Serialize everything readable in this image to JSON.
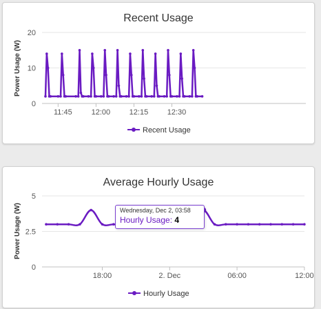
{
  "colors": {
    "series": "#6a1bc2",
    "axis": "#c0c0c0",
    "grid": "#e6e6e6"
  },
  "chart_data": [
    {
      "type": "line",
      "title": "Recent Usage",
      "ylabel": "Power Usage (W)",
      "xlabel": "",
      "ylim": [
        0,
        20
      ],
      "yticks": [
        "0",
        "10",
        "20"
      ],
      "xticks": [
        "11:45",
        "12:00",
        "12:15",
        "12:30"
      ],
      "legend": "bottom-center",
      "grid": true,
      "series": [
        {
          "name": "Recent Usage",
          "x": [
            "11:40",
            "11:40.5",
            "11:41",
            "11:41.5",
            "11:42",
            "11:45",
            "11:46",
            "11:46.5",
            "11:47",
            "11:47.5",
            "11:48",
            "11:52",
            "11:53",
            "11:53.5",
            "11:54",
            "11:54.5",
            "11:55",
            "11:57",
            "11:58",
            "11:58.5",
            "11:59",
            "11:59.5",
            "12:00",
            "12:02",
            "12:03",
            "12:03.5",
            "12:04",
            "12:04.5",
            "12:05",
            "12:07",
            "12:08",
            "12:08.5",
            "12:09",
            "12:09.5",
            "12:10",
            "12:12",
            "12:13",
            "12:13.5",
            "12:14",
            "12:14.5",
            "12:15",
            "12:17",
            "12:18",
            "12:18.5",
            "12:19",
            "12:19.5",
            "12:20",
            "12:22",
            "12:23",
            "12:23.5",
            "12:24",
            "12:24.5",
            "12:25",
            "12:27",
            "12:28",
            "12:28.5",
            "12:29",
            "12:29.5",
            "12:30",
            "12:32",
            "12:33",
            "12:33.5",
            "12:34",
            "12:34.5",
            "12:35",
            "12:37",
            "12:38",
            "12:38.5",
            "12:39",
            "12:39.5",
            "12:40",
            "12:42"
          ],
          "values": [
            2,
            14,
            10,
            2,
            2,
            2,
            2,
            14,
            8,
            2,
            2,
            2,
            2,
            15,
            3,
            2,
            2,
            2,
            2,
            14,
            10,
            2,
            2,
            2,
            2,
            15,
            8,
            2,
            2,
            2,
            2,
            15,
            5,
            2,
            2,
            2,
            2,
            14,
            8,
            2,
            2,
            2,
            2,
            15,
            7,
            2,
            2,
            2,
            2,
            14,
            5,
            2,
            2,
            2,
            2,
            15,
            8,
            2,
            2,
            2,
            2,
            14,
            7,
            2,
            2,
            2,
            2,
            15,
            10,
            2,
            2,
            2
          ]
        }
      ]
    },
    {
      "type": "line",
      "title": "Average Hourly Usage",
      "ylabel": "Power Usage (W)",
      "xlabel": "",
      "ylim": [
        0,
        5
      ],
      "yticks": [
        "0",
        "2.5",
        "5"
      ],
      "xticks": [
        "18:00",
        "2. Dec",
        "06:00",
        "12:00"
      ],
      "legend": "bottom-center",
      "grid": true,
      "series": [
        {
          "name": "Hourly Usage",
          "x": [
            "Dec 1 13:00",
            "Dec 1 14:00",
            "Dec 1 15:00",
            "Dec 1 16:00",
            "Dec 1 17:00",
            "Dec 1 18:00",
            "Dec 1 19:00",
            "Dec 1 20:00",
            "Dec 1 21:00",
            "Dec 1 22:00",
            "Dec 1 23:00",
            "Dec 2 00:00",
            "Dec 2 01:00",
            "Dec 2 02:00",
            "Dec 2 03:00",
            "Dec 2 04:00",
            "Dec 2 05:00",
            "Dec 2 06:00",
            "Dec 2 07:00",
            "Dec 2 08:00",
            "Dec 2 09:00",
            "Dec 2 10:00",
            "Dec 2 11:00",
            "Dec 2 12:00"
          ],
          "values": [
            3,
            3,
            3,
            3,
            4,
            3,
            3,
            3,
            4,
            3,
            4,
            3,
            3,
            3,
            4,
            3,
            3,
            3,
            3,
            3,
            3,
            3,
            3,
            3
          ]
        }
      ],
      "tooltip": {
        "date": "Wednesday, Dec 2, 03:58",
        "series_label": "Hourly Usage:",
        "value": "4"
      }
    }
  ]
}
